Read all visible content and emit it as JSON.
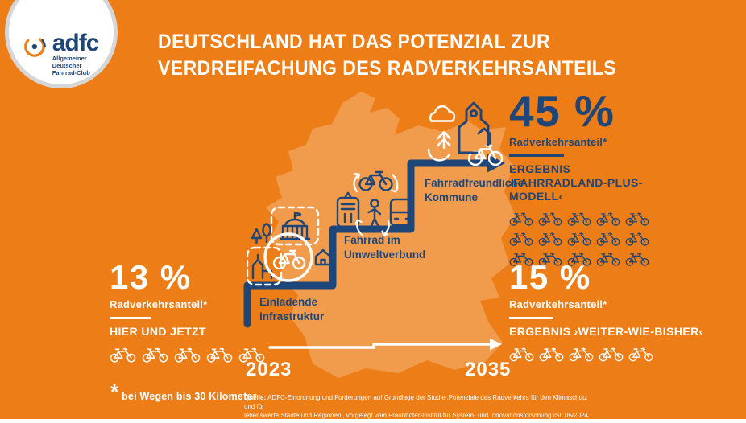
{
  "colors": {
    "bg": "#ED7D17",
    "map": "#F19B4C",
    "navy": "#1E4679",
    "white": "#FFFFFF",
    "ring": "#D6D6D6"
  },
  "logo": {
    "brand": "adfc",
    "subtitle_line1": "Allgemeiner Deutscher",
    "subtitle_line2": "Fahrrad-Club"
  },
  "title": {
    "line1": "DEUTSCHLAND HAT DAS POTENZIAL ZUR",
    "line2": "VERDREIFACHUNG DES RADVERKEHRSANTEILS"
  },
  "stats": {
    "now": {
      "value": "13 %",
      "label": "Radverkehrsanteil*",
      "caption": "HIER UND JETZT",
      "bike_count": 5
    },
    "plus_model": {
      "value": "45 %",
      "label": "Radverkehrsanteil*",
      "caption_line1": "ERGEBNIS",
      "caption_line2": "›FAHRRADLAND-PLUS-MODELL‹",
      "bike_count": 15
    },
    "business_as_usual": {
      "value": "15 %",
      "label": "Radverkehrsanteil*",
      "caption": "ERGEBNIS ›WEITER-WIE-BISHER‹",
      "bike_count": 5
    }
  },
  "steps": [
    {
      "line1": "Einladende",
      "line2": "Infrastruktur"
    },
    {
      "line1": "Fahrrad im",
      "line2": "Umweltverbund"
    },
    {
      "line1": "Fahrradfreundliche",
      "line2": "Kommune"
    }
  ],
  "timeline": {
    "start_year": "2023",
    "end_year": "2035"
  },
  "footnote": {
    "symbol": "*",
    "text": "bei Wegen bis 30 Kilometer"
  },
  "source": {
    "label": "Quelle:",
    "line1": "ADFC-Einordnung und Forderungen auf Grundlage der Studie ‚Potenziale des Radverkehrs für den Klimaschutz und für",
    "line2": "lebenswerte Städte und Regionen‘, vorgelegt vom Fraunhofer-Institut für System- und Innovationsforschung ISI, 05/2024"
  }
}
